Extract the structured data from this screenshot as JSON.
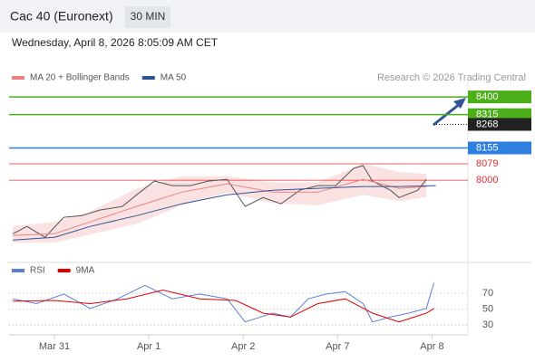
{
  "header": {
    "title": "Cac 40 (Euronext)",
    "interval": "30 MIN",
    "timestamp": "Wednesday, April 8, 2026 8:05:09 AM CET",
    "credit": "Research © 2026 Trading Central"
  },
  "chart_data": [
    {
      "type": "line",
      "xlim": [
        -0.48,
        4.38
      ],
      "ylim": [
        7640,
        8483
      ],
      "xticks": [
        {
          "value": 0,
          "label": "Mar 31"
        },
        {
          "value": 1,
          "label": "Apr 1"
        },
        {
          "value": 2,
          "label": "Apr 2"
        },
        {
          "value": 3,
          "label": "Apr 7"
        },
        {
          "value": 4,
          "label": "Apr 8"
        }
      ],
      "series": [
        {
          "color": "#555555",
          "x": [
            -0.44,
            -0.29,
            -0.1,
            0.1,
            0.29,
            0.48,
            0.72,
            0.87,
            1.06,
            1.25,
            1.44,
            1.63,
            1.83,
            2.02,
            2.21,
            2.4,
            2.6,
            2.79,
            2.98,
            3.17,
            3.27,
            3.37,
            3.56,
            3.65,
            3.85,
            3.94
          ],
          "values": [
            7743,
            7778,
            7726,
            7822,
            7830,
            7857,
            7874,
            7930,
            7996,
            7974,
            7974,
            7996,
            8004,
            7874,
            7917,
            7887,
            7952,
            7974,
            7974,
            8057,
            8070,
            7996,
            7952,
            7917,
            7952,
            8004
          ]
        },
        {
          "name": "MA 20 + Bollinger Bands",
          "color": "#f08080",
          "x": [
            -0.44,
            0.0,
            0.38,
            0.87,
            1.35,
            1.83,
            2.31,
            2.79,
            3.27,
            3.65,
            3.94
          ],
          "values": [
            7735,
            7743,
            7800,
            7874,
            7943,
            7983,
            7943,
            7943,
            8004,
            7961,
            7970
          ],
          "upper": [
            7780,
            7800,
            7850,
            7960,
            8020,
            8020,
            7990,
            7990,
            8080,
            8040,
            8030
          ],
          "lower": [
            7700,
            7700,
            7740,
            7790,
            7880,
            7940,
            7890,
            7880,
            7930,
            7900,
            7920
          ]
        },
        {
          "name": "MA 50",
          "color": "#2f5597",
          "x": [
            -0.44,
            0.0,
            0.38,
            0.87,
            1.35,
            1.83,
            2.31,
            2.79,
            3.27,
            3.65,
            4.04
          ],
          "values": [
            7713,
            7726,
            7778,
            7830,
            7887,
            7930,
            7952,
            7961,
            7970,
            7970,
            7974
          ]
        }
      ],
      "levels": [
        {
          "value": 8400,
          "color": "#4caf1a",
          "boxed": true
        },
        {
          "value": 8315,
          "color": "#4caf1a",
          "boxed": true
        },
        {
          "value": 8268,
          "color": "#222222",
          "boxed": true,
          "dotted": true
        },
        {
          "value": 8155,
          "color": "#2f7fe0",
          "boxed": true
        },
        {
          "value": 8079,
          "color": "#e03030",
          "boxed": false
        },
        {
          "value": 8000,
          "color": "#e03030",
          "boxed": false
        }
      ]
    },
    {
      "type": "line",
      "xlim": [
        -0.48,
        4.38
      ],
      "ylim": [
        20,
        86
      ],
      "yticks": [
        70,
        50,
        30
      ],
      "grid": true,
      "series": [
        {
          "name": "RSI",
          "color": "#5b7fd8",
          "x": [
            -0.44,
            -0.19,
            0.1,
            0.38,
            0.67,
            0.96,
            1.25,
            1.54,
            1.83,
            2.02,
            2.31,
            2.5,
            2.69,
            2.88,
            3.08,
            3.27,
            3.37,
            3.56,
            3.75,
            3.94,
            4.02
          ],
          "values": [
            63,
            57,
            69,
            51,
            63,
            80,
            63,
            69,
            63,
            34,
            45,
            40,
            63,
            69,
            72,
            57,
            34,
            40,
            45,
            51,
            83
          ]
        },
        {
          "name": "9MA",
          "color": "#e00000",
          "x": [
            -0.44,
            0.0,
            0.38,
            0.77,
            1.15,
            1.54,
            1.92,
            2.21,
            2.5,
            2.79,
            3.08,
            3.37,
            3.65,
            3.94,
            4.02
          ],
          "values": [
            60,
            61,
            57,
            63,
            74,
            63,
            61,
            45,
            40,
            57,
            63,
            45,
            34,
            45,
            51
          ]
        }
      ]
    }
  ]
}
